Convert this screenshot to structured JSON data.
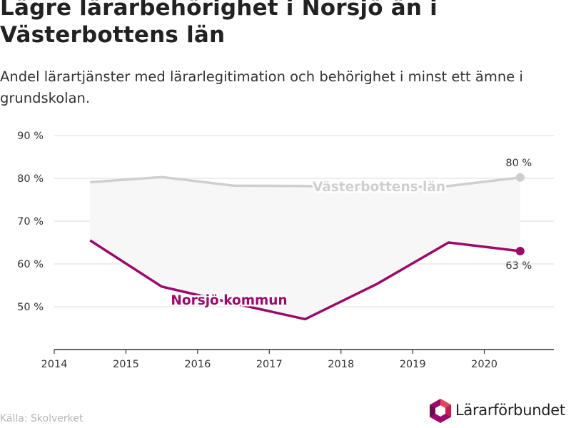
{
  "title": "Lägre lärarbehörighet i Norsjö än i Västerbottens län",
  "subtitle": "Andel lärartjänster med lärarlegitimation och behörighet i minst ett ämne i grundskolan.",
  "source": "Källa: Skolverket",
  "logo_text": "Lärarförbundet",
  "colors": {
    "norsjo": "#9b0a6a",
    "vasterbotten": "#cfcfcf",
    "band": "#f7f7f7",
    "grid": "#e2e2e2",
    "axis": "#333333"
  },
  "chart_data": {
    "type": "line",
    "title": "Lägre lärarbehörighet i Norsjö än i Västerbottens län",
    "subtitle": "Andel lärartjänster med lärarlegitimation och behörighet i minst ett ämne i grundskolan.",
    "xlabel": "",
    "ylabel": "",
    "x_ticks": [
      "2014",
      "2015",
      "2016",
      "2017",
      "2018",
      "2019",
      "2020"
    ],
    "x_range": [
      2014,
      2020.97
    ],
    "y_ticks": [
      "50 %",
      "60 %",
      "70 %",
      "80 %",
      "90 %"
    ],
    "y_tick_values": [
      50,
      60,
      70,
      80,
      90
    ],
    "ylim": [
      40,
      90
    ],
    "grid": true,
    "x": [
      2014.5,
      2015.5,
      2016.5,
      2017.5,
      2018.5,
      2019.5,
      2020.5
    ],
    "series": [
      {
        "name": "Västerbottens län",
        "values": [
          79.1,
          80.3,
          78.3,
          78.2,
          77.7,
          78.2,
          80.2
        ],
        "end_label": "80 %"
      },
      {
        "name": "Norsjö kommun",
        "values": [
          65.5,
          54.7,
          50.8,
          47.1,
          55.3,
          65.0,
          63.0
        ],
        "end_label": "63 %"
      }
    ]
  }
}
